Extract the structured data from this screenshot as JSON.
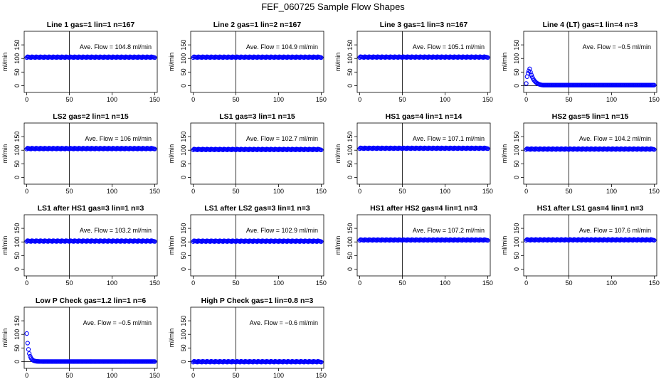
{
  "title": "FEF_060725  Sample Flow Shapes",
  "chart_data": {
    "type": "scatter",
    "shared": {
      "x_ticks": [
        0,
        50,
        100,
        150
      ],
      "y_ticks": [
        0,
        50,
        100,
        150
      ],
      "xlim": [
        -3,
        153
      ],
      "ylim": [
        -25,
        200
      ],
      "ylabel": "ml/min",
      "vline_x": 50,
      "annotation_prefix": "Ave. Flow = ",
      "annotation_unit": "ml/min",
      "point_color": "#0000ff"
    },
    "panels": [
      {
        "title": "Line 1 gas=1 lin=1 n=167",
        "ave_flow": "104.8",
        "hline": 104.8,
        "shape": "flat",
        "level": 104.8
      },
      {
        "title": "Line 2 gas=1 lin=2 n=167",
        "ave_flow": "104.9",
        "hline": 104.9,
        "shape": "flat",
        "level": 104.9
      },
      {
        "title": "Line 3 gas=1 lin=3 n=167",
        "ave_flow": "105.1",
        "hline": 105.1,
        "shape": "flat",
        "level": 105.1
      },
      {
        "title": "Line 4 (LT) gas=1 lin=4 n=3",
        "ave_flow": "−0.5",
        "hline": -0.5,
        "shape": "bump",
        "level": 0,
        "peak": 62
      },
      {
        "title": "LS2 gas=2 lin=1 n=15",
        "ave_flow": "106",
        "hline": 106,
        "shape": "flat",
        "level": 106
      },
      {
        "title": "LS1 gas=3 lin=1 n=15",
        "ave_flow": "102.7",
        "hline": 102.7,
        "shape": "flat",
        "level": 102.7
      },
      {
        "title": "HS1 gas=4 lin=1 n=14",
        "ave_flow": "107.1",
        "hline": 107.1,
        "shape": "flat",
        "level": 107.1
      },
      {
        "title": "HS2 gas=5 lin=1 n=15",
        "ave_flow": "104.2",
        "hline": 104.2,
        "shape": "flat",
        "level": 104.2
      },
      {
        "title": "LS1 after HS1 gas=3 lin=1 n=3",
        "ave_flow": "103.2",
        "hline": 103.2,
        "shape": "flat",
        "level": 103.2
      },
      {
        "title": "LS1 after LS2 gas=3 lin=1 n=3",
        "ave_flow": "102.9",
        "hline": 102.9,
        "shape": "flat",
        "level": 102.9
      },
      {
        "title": "HS1 after HS2 gas=4 lin=1 n=3",
        "ave_flow": "107.2",
        "hline": 107.2,
        "shape": "flat",
        "level": 107.2
      },
      {
        "title": "HS1 after LS1 gas=4 lin=1 n=3",
        "ave_flow": "107.6",
        "hline": 107.6,
        "shape": "flat",
        "level": 107.6
      },
      {
        "title": "Low P Check gas=1.2 lin=1 n=6",
        "ave_flow": "−0.5",
        "hline": -0.5,
        "shape": "decay",
        "level": 0,
        "peak": 103
      },
      {
        "title": "High P Check gas=1 lin=0.8 n=3",
        "ave_flow": "−0.6",
        "hline": -0.6,
        "shape": "flat",
        "level": -0.6
      }
    ]
  }
}
